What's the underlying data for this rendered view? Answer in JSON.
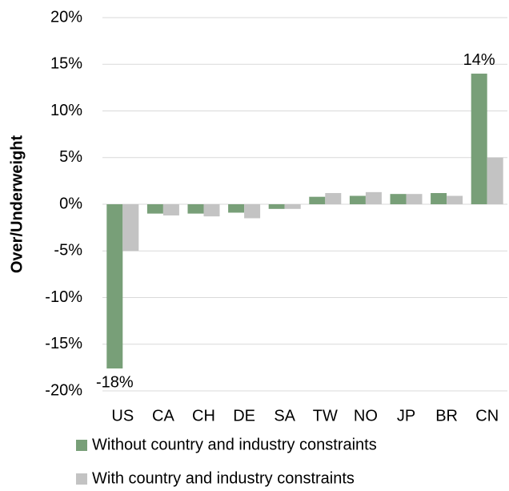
{
  "chart_data": {
    "type": "bar",
    "y_axis_label": "Over/Underweight",
    "categories": [
      "US",
      "CA",
      "CH",
      "DE",
      "SA",
      "TW",
      "NO",
      "JP",
      "BR",
      "CN"
    ],
    "series": [
      {
        "name": "Without country and industry constraints",
        "color": "#789f78",
        "values": [
          -17.6,
          -1.0,
          -1.0,
          -0.9,
          -0.5,
          0.8,
          0.9,
          1.1,
          1.2,
          14.0
        ],
        "value_labels": [
          "-18%",
          null,
          null,
          null,
          null,
          null,
          null,
          null,
          null,
          "14%"
        ]
      },
      {
        "name": "With country and industry constraints",
        "color": "#c3c3c3",
        "values": [
          -5.0,
          -1.2,
          -1.3,
          -1.5,
          -0.5,
          1.2,
          1.3,
          1.1,
          0.9,
          5.0
        ]
      }
    ],
    "ylim": [
      -20,
      20
    ],
    "yticks": [
      {
        "value": -20,
        "label": "-20%"
      },
      {
        "value": -15,
        "label": "-15%"
      },
      {
        "value": -10,
        "label": "-10%"
      },
      {
        "value": -5,
        "label": "-5%"
      },
      {
        "value": 0,
        "label": "0%"
      },
      {
        "value": 5,
        "label": "5%"
      },
      {
        "value": 10,
        "label": "10%"
      },
      {
        "value": 15,
        "label": "15%"
      },
      {
        "value": 20,
        "label": "20%"
      }
    ],
    "grid": true
  }
}
